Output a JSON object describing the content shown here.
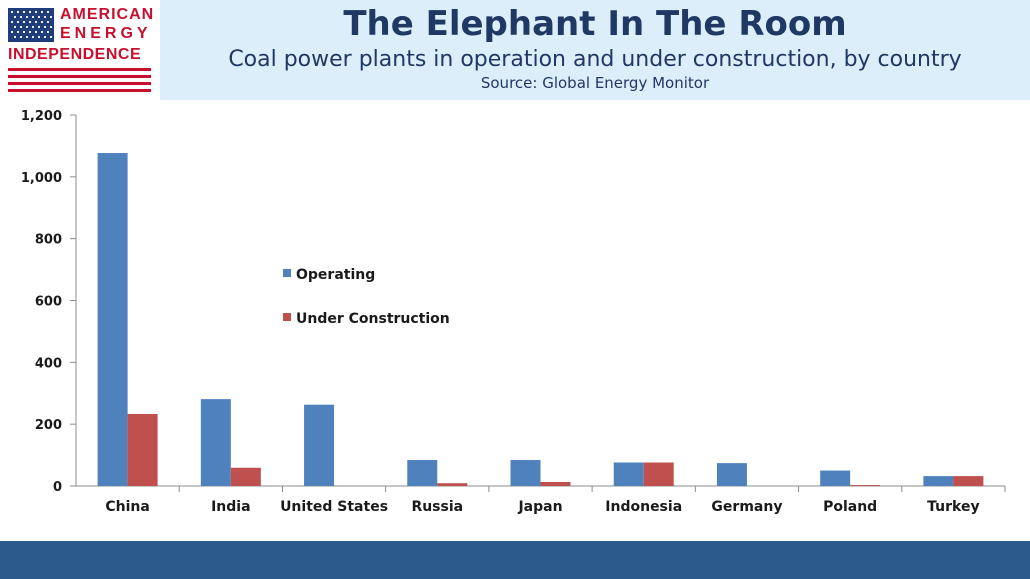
{
  "brand": {
    "line1": "AMERICAN",
    "line2": "ENERGY",
    "line3": "INDEPENDENCE",
    "red": "#c8102e",
    "blue": "#1f3d7a"
  },
  "colors": {
    "header_bg": "#ddeefb",
    "title": "#1f3864",
    "footer": "#2c5a8c",
    "operating": "#4f81bd",
    "under_construction": "#c0504d"
  },
  "chart_data": {
    "type": "bar",
    "title": "The Elephant In The Room",
    "subtitle": "Coal power plants in operation and under construction, by country",
    "source": "Source: Global Energy Monitor",
    "categories": [
      "China",
      "India",
      "United States",
      "Russia",
      "Japan",
      "Indonesia",
      "Germany",
      "Poland",
      "Turkey"
    ],
    "series": [
      {
        "name": "Operating",
        "color": "#4f81bd",
        "values": [
          1077,
          281,
          263,
          84,
          84,
          76,
          74,
          50,
          32
        ]
      },
      {
        "name": "Under Construction",
        "color": "#c0504d",
        "values": [
          233,
          59,
          0,
          9,
          13,
          76,
          0,
          3,
          32
        ]
      }
    ],
    "ylim": [
      0,
      1200
    ],
    "yticks": [
      0,
      200,
      400,
      600,
      800,
      1000,
      1200
    ],
    "ytick_labels": [
      "0",
      "200",
      "400",
      "600",
      "800",
      "1,000",
      "1,200"
    ],
    "xlabel": "",
    "ylabel": "",
    "grid": false,
    "legend_position": "center-left"
  }
}
